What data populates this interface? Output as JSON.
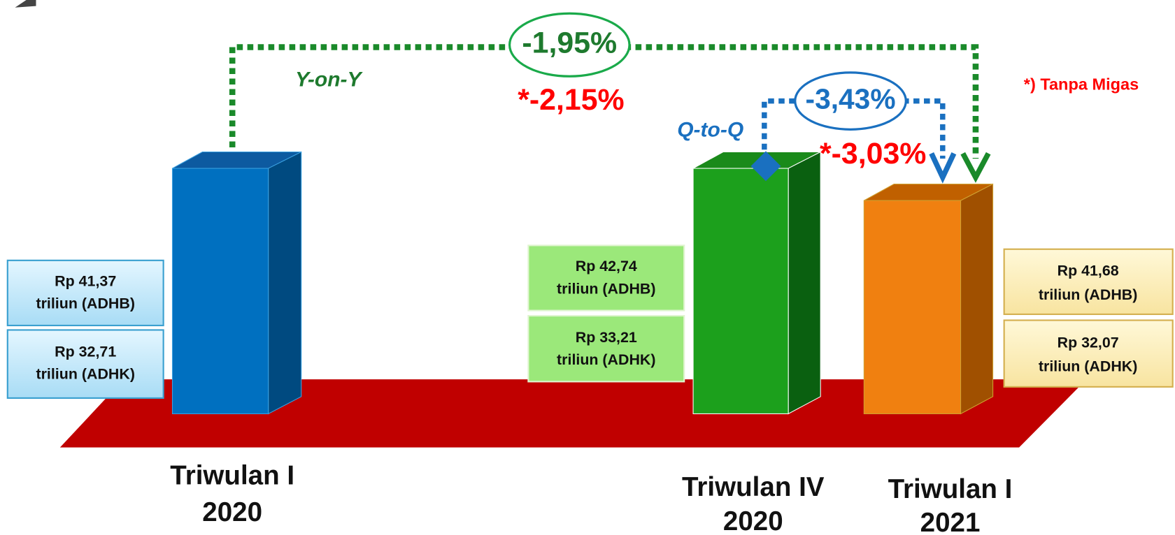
{
  "annotations": {
    "yoy_label": "Y-on-Y",
    "yoy_value": "-1,95%",
    "yoy_nonmigas": "*-2,15%",
    "qtq_label": "Q-to-Q",
    "qtq_value": "-3,43%",
    "qtq_nonmigas": "*-3,03%",
    "note": "*) Tanpa Migas"
  },
  "periods": [
    {
      "label": [
        "Triwulan I",
        "2020"
      ],
      "adhb": [
        "Rp 41,37",
        "triliun (ADHB)"
      ],
      "adhk": [
        "Rp 32,71",
        "triliun (ADHK)"
      ]
    },
    {
      "label": [
        "Triwulan IV",
        "2020"
      ],
      "adhb": [
        "Rp 42,74",
        "triliun (ADHB)"
      ],
      "adhk": [
        "Rp 33,21",
        "triliun (ADHK)"
      ]
    },
    {
      "label": [
        "Triwulan I",
        "2021"
      ],
      "adhb": [
        "Rp 41,68",
        "triliun (ADHB)"
      ],
      "adhk": [
        "Rp 32,07",
        "triliun (ADHK)"
      ]
    }
  ]
}
